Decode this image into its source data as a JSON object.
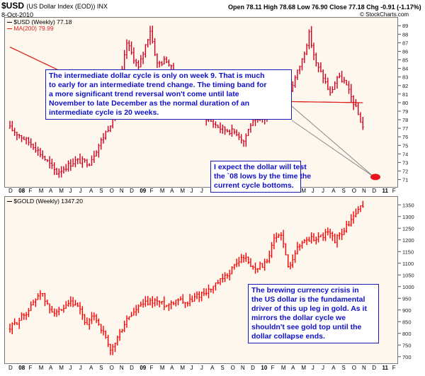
{
  "header": {
    "symbol": "$USD",
    "name": "(US Dollar Index (EOD)) INX",
    "date": "8-Oct-2010",
    "quote": "Open 78.11  High 78.68  Low 76.90  Close 77.18  Chg -0.91 (-1.17%)",
    "brand": "© StockCharts.com"
  },
  "chart_data": [
    {
      "type": "ohlc",
      "legend_title": "$USD (Weekly) 77.18",
      "legend_ma": "MA(200) 79.99",
      "colors": {
        "price": "#d2001e",
        "ma": "#e0201e",
        "bg": "#fdf7ee"
      },
      "ylim": [
        70.3,
        89.6
      ],
      "y_ticks": [
        71,
        72,
        73,
        74,
        75,
        76,
        77,
        78,
        79,
        80,
        81,
        82,
        83,
        84,
        85,
        86,
        87,
        88,
        89
      ],
      "x_labels": [
        "D",
        "08",
        "F",
        "M",
        "A",
        "M",
        "J",
        "J",
        "A",
        "S",
        "O",
        "N",
        "D",
        "09",
        "F",
        "M",
        "A",
        "M",
        "J",
        "J",
        "A",
        "S",
        "O",
        "N",
        "D",
        "10",
        "F",
        "M",
        "A",
        "M",
        "J",
        "J",
        "A",
        "S",
        "O",
        "N",
        "D",
        "11",
        "F"
      ],
      "close_anchors": [
        [
          0,
          77.0
        ],
        [
          10,
          75.0
        ],
        [
          20,
          71.8
        ],
        [
          28,
          73.2
        ],
        [
          34,
          73.0
        ],
        [
          40,
          76.0
        ],
        [
          45,
          78.6
        ],
        [
          50,
          87.0
        ],
        [
          55,
          84.0
        ],
        [
          60,
          88.5
        ],
        [
          63,
          84.5
        ],
        [
          67,
          85.0
        ],
        [
          72,
          82.5
        ],
        [
          80,
          79.0
        ],
        [
          90,
          77.0
        ],
        [
          97,
          76.5
        ],
        [
          100,
          75.5
        ],
        [
          103,
          77.5
        ],
        [
          108,
          78.0
        ],
        [
          115,
          80.0
        ],
        [
          120,
          81.5
        ],
        [
          125,
          85.0
        ],
        [
          128,
          88.0
        ],
        [
          131,
          84.5
        ],
        [
          134,
          83.0
        ],
        [
          137,
          81.0
        ],
        [
          140,
          83.0
        ],
        [
          143,
          82.5
        ],
        [
          147,
          80.0
        ],
        [
          151,
          77.18
        ]
      ],
      "ma_anchors": [
        [
          0,
          86.5
        ],
        [
          50,
          80.0
        ],
        [
          100,
          80.2
        ],
        [
          151,
          79.99
        ]
      ],
      "forecast_marker_price": 71.3,
      "annotations": [
        [
          "The intermediate dollar cycle is only on week 9. That is much",
          "to early for an intermediate trend change. The timing band for",
          "a more significant trend reversal won't come until late",
          "November to late December as the normal duration of an",
          "intermediate cycle is 20 weeks."
        ],
        [
          "I expect the dollar will test",
          "the `08 lows by the time the",
          "current cycle bottoms."
        ]
      ]
    },
    {
      "type": "ohlc",
      "legend_title": "$GOLD (Weekly) 1347.20",
      "colors": {
        "price": "#ff0000",
        "bg": "#fdf7ee"
      },
      "ylim": [
        675,
        1372
      ],
      "y_ticks": [
        700,
        750,
        800,
        850,
        900,
        950,
        1000,
        1050,
        1100,
        1150,
        1200,
        1250,
        1300,
        1350
      ],
      "x_labels": [
        "D",
        "08",
        "F",
        "M",
        "A",
        "M",
        "J",
        "J",
        "A",
        "S",
        "O",
        "N",
        "D",
        "09",
        "F",
        "M",
        "A",
        "M",
        "J",
        "J",
        "A",
        "S",
        "O",
        "N",
        "D",
        "10",
        "F",
        "M",
        "A",
        "M",
        "J",
        "J",
        "A",
        "S",
        "O",
        "N",
        "D",
        "11",
        "F"
      ],
      "close_anchors": [
        [
          0,
          820
        ],
        [
          8,
          900
        ],
        [
          13,
          980
        ],
        [
          17,
          900
        ],
        [
          22,
          890
        ],
        [
          26,
          930
        ],
        [
          30,
          900
        ],
        [
          33,
          830
        ],
        [
          36,
          880
        ],
        [
          40,
          800
        ],
        [
          43,
          720
        ],
        [
          46,
          780
        ],
        [
          50,
          860
        ],
        [
          56,
          920
        ],
        [
          62,
          940
        ],
        [
          67,
          920
        ],
        [
          72,
          950
        ],
        [
          76,
          930
        ],
        [
          80,
          960
        ],
        [
          86,
          990
        ],
        [
          92,
          1040
        ],
        [
          97,
          1100
        ],
        [
          100,
          1130
        ],
        [
          104,
          1080
        ],
        [
          110,
          1100
        ],
        [
          113,
          1200
        ],
        [
          116,
          1230
        ],
        [
          119,
          1080
        ],
        [
          122,
          1150
        ],
        [
          126,
          1200
        ],
        [
          132,
          1210
        ],
        [
          136,
          1230
        ],
        [
          139,
          1200
        ],
        [
          143,
          1240
        ],
        [
          147,
          1300
        ],
        [
          151,
          1347
        ]
      ],
      "annotation": [
        "The brewing currency crisis in",
        "the US dollar is the fundamental",
        "driver of this up leg in gold. As it",
        "mirrors the dollar cycle we",
        "shouldn't see gold top until the",
        "dollar collapse ends."
      ]
    }
  ]
}
